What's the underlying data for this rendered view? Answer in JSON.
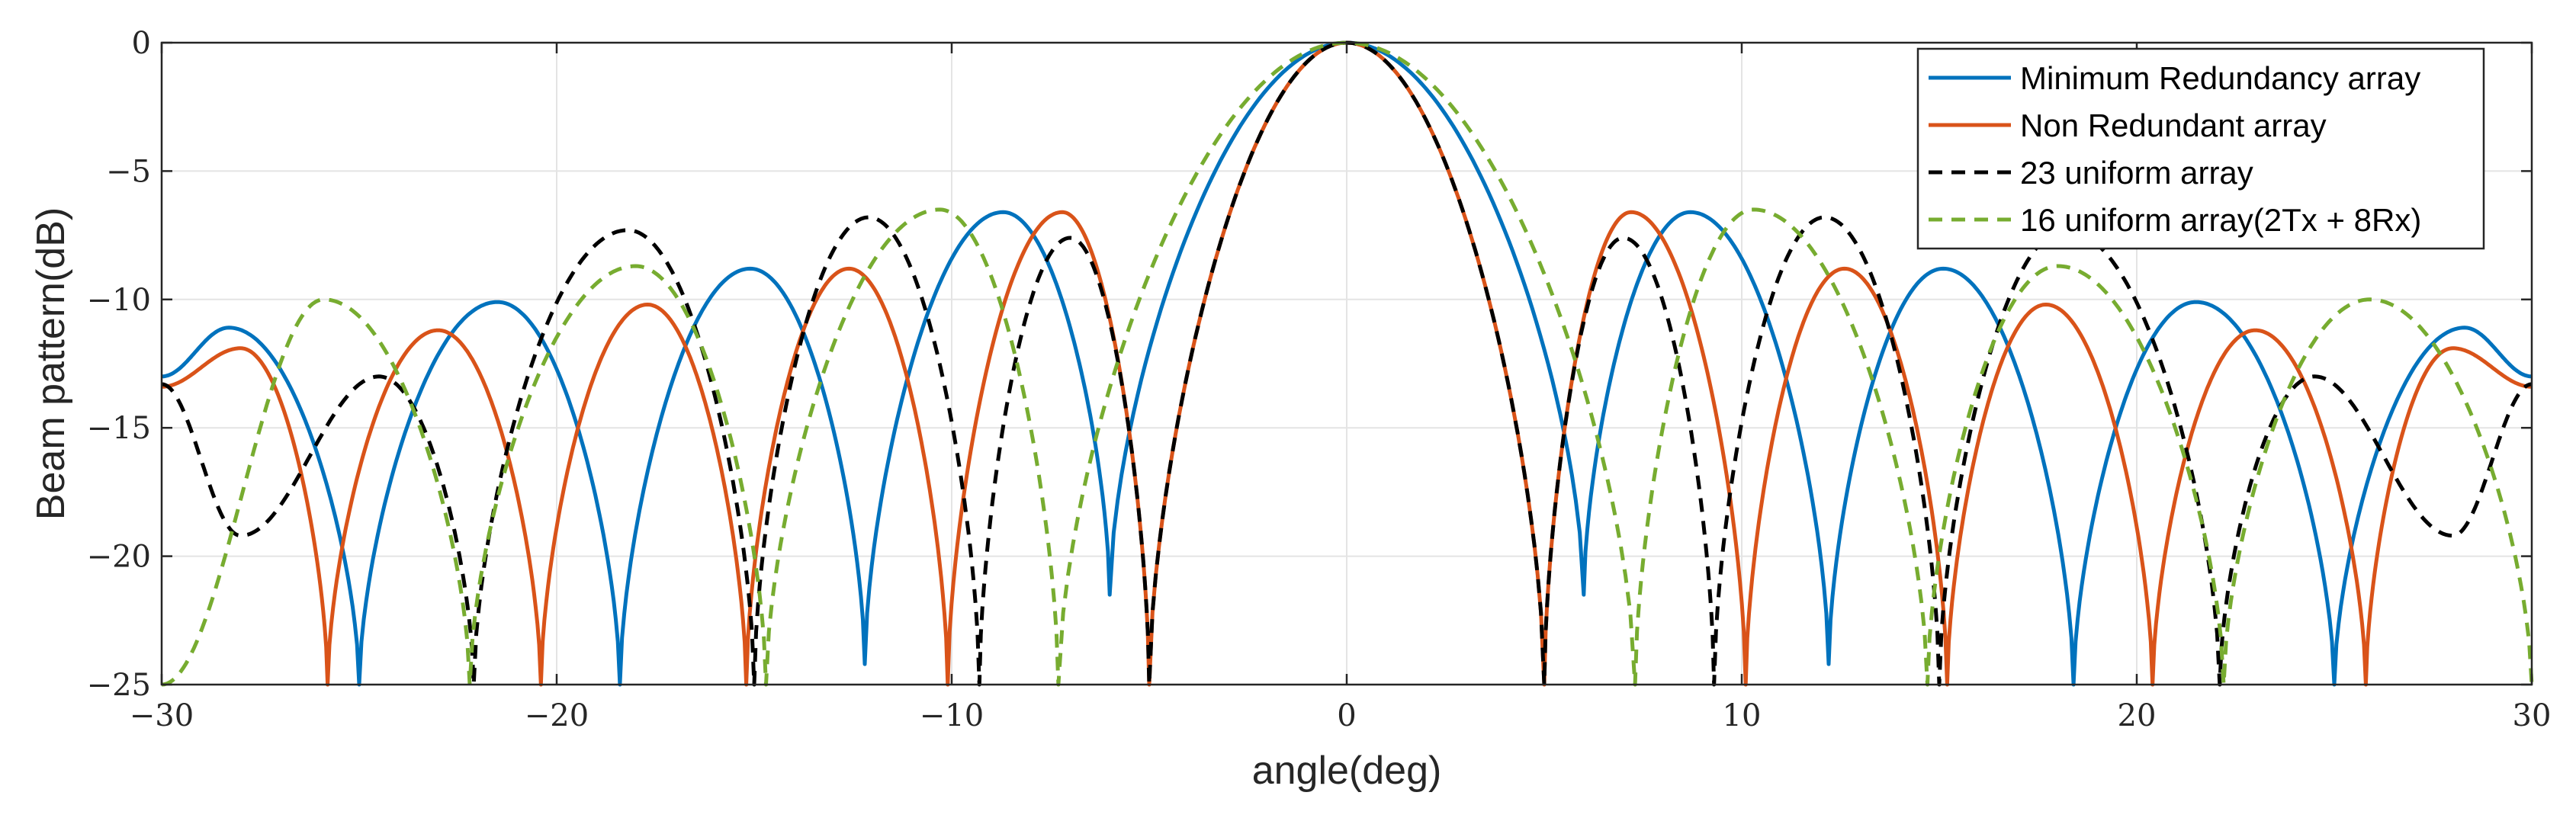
{
  "chart_data": {
    "type": "line",
    "title": "",
    "xlabel": "angle(deg)",
    "ylabel": "Beam pattern(dB)",
    "xlim": [
      -30,
      30
    ],
    "ylim": [
      -25,
      0
    ],
    "xticks": [
      -30,
      -20,
      -10,
      0,
      10,
      20,
      30
    ],
    "yticks": [
      0,
      -5,
      -10,
      -15,
      -20,
      -25
    ],
    "xtick_labels": [
      "−30",
      "−20",
      "−10",
      "0",
      "10",
      "20",
      "30"
    ],
    "ytick_labels": [
      "0",
      "−5",
      "−10",
      "−15",
      "−20",
      "−25"
    ],
    "grid": true,
    "legend_position": "top-right",
    "series": [
      {
        "name": "Minimum Redundancy array",
        "color": "#0072BD",
        "dash": "solid",
        "nulls": [
          -25.0,
          -18.4,
          -12.2,
          -6.0,
          6.0,
          12.2,
          18.4,
          25.0
        ],
        "null_depths": [
          -25,
          -25,
          -24.2,
          -21.5,
          -21.5,
          -24.2,
          -25,
          -25
        ],
        "peaks": [
          {
            "x": -28.3,
            "y": -11.1
          },
          {
            "x": -21.5,
            "y": -10.1
          },
          {
            "x": -15.1,
            "y": -8.8
          },
          {
            "x": -8.7,
            "y": -6.6
          },
          {
            "x": 0,
            "y": 0
          },
          {
            "x": 8.7,
            "y": -6.6
          },
          {
            "x": 15.1,
            "y": -8.8
          },
          {
            "x": 21.5,
            "y": -10.1
          },
          {
            "x": 28.3,
            "y": -11.1
          }
        ],
        "edge_values": {
          "left": -13.0,
          "right": -13.0
        }
      },
      {
        "name": "Non Redundant array",
        "color": "#D95319",
        "dash": "solid",
        "nulls": [
          -25.8,
          -20.4,
          -15.2,
          -10.1,
          -5.0,
          5.0,
          10.1,
          15.2,
          20.4,
          25.8
        ],
        "null_depths": [
          -25,
          -25,
          -25,
          -25,
          -25,
          -25,
          -25,
          -25,
          -25,
          -25
        ],
        "peaks": [
          {
            "x": -28.0,
            "y": -11.9
          },
          {
            "x": -23.0,
            "y": -11.2
          },
          {
            "x": -17.7,
            "y": -10.2
          },
          {
            "x": -12.6,
            "y": -8.8
          },
          {
            "x": -7.2,
            "y": -6.6
          },
          {
            "x": 0,
            "y": 0
          },
          {
            "x": 7.2,
            "y": -6.6
          },
          {
            "x": 12.6,
            "y": -8.8
          },
          {
            "x": 17.7,
            "y": -10.2
          },
          {
            "x": 23.0,
            "y": -11.2
          },
          {
            "x": 28.0,
            "y": -11.9
          }
        ],
        "edge_values": {
          "left": -13.4,
          "right": -13.4
        }
      },
      {
        "name": "23 uniform array",
        "color": "#000000",
        "dash": "dashed",
        "nulls": [
          -22.1,
          -15.0,
          -9.3,
          -5.0,
          5.0,
          9.3,
          15.0,
          22.1
        ],
        "null_depths": [
          -25,
          -25,
          -25,
          -25,
          -25,
          -25,
          -25,
          -25
        ],
        "peaks": [
          {
            "x": -24.5,
            "y": -13.0
          },
          {
            "x": -18.2,
            "y": -7.3
          },
          {
            "x": -12.1,
            "y": -6.8
          },
          {
            "x": -7.0,
            "y": -7.6
          },
          {
            "x": 0,
            "y": 0
          },
          {
            "x": 7.0,
            "y": -7.6
          },
          {
            "x": 12.1,
            "y": -6.8
          },
          {
            "x": 18.2,
            "y": -7.3
          },
          {
            "x": 24.5,
            "y": -13.0
          }
        ],
        "troughs": [
          {
            "x": -28.0,
            "y": -19.2
          },
          {
            "x": 28.0,
            "y": -19.2
          }
        ],
        "edge_values": {
          "left": -13.3,
          "right": -13.3
        }
      },
      {
        "name": "16 uniform array(2Tx + 8Rx)",
        "color": "#77AC30",
        "dash": "dashed",
        "nulls": [
          -30.0,
          -22.2,
          -14.7,
          -7.3,
          7.3,
          14.7,
          22.2,
          30.0
        ],
        "null_depths": [
          -25,
          -25,
          -25,
          -25,
          -25,
          -25,
          -25,
          -25
        ],
        "peaks": [
          {
            "x": -25.9,
            "y": -10.0
          },
          {
            "x": -18.0,
            "y": -8.7
          },
          {
            "x": -10.3,
            "y": -6.5
          },
          {
            "x": 0,
            "y": 0
          },
          {
            "x": 10.3,
            "y": -6.5
          },
          {
            "x": 18.0,
            "y": -8.7
          },
          {
            "x": 25.9,
            "y": -10.0
          }
        ],
        "edge_values": {
          "left": -25,
          "right": -25
        }
      }
    ]
  }
}
